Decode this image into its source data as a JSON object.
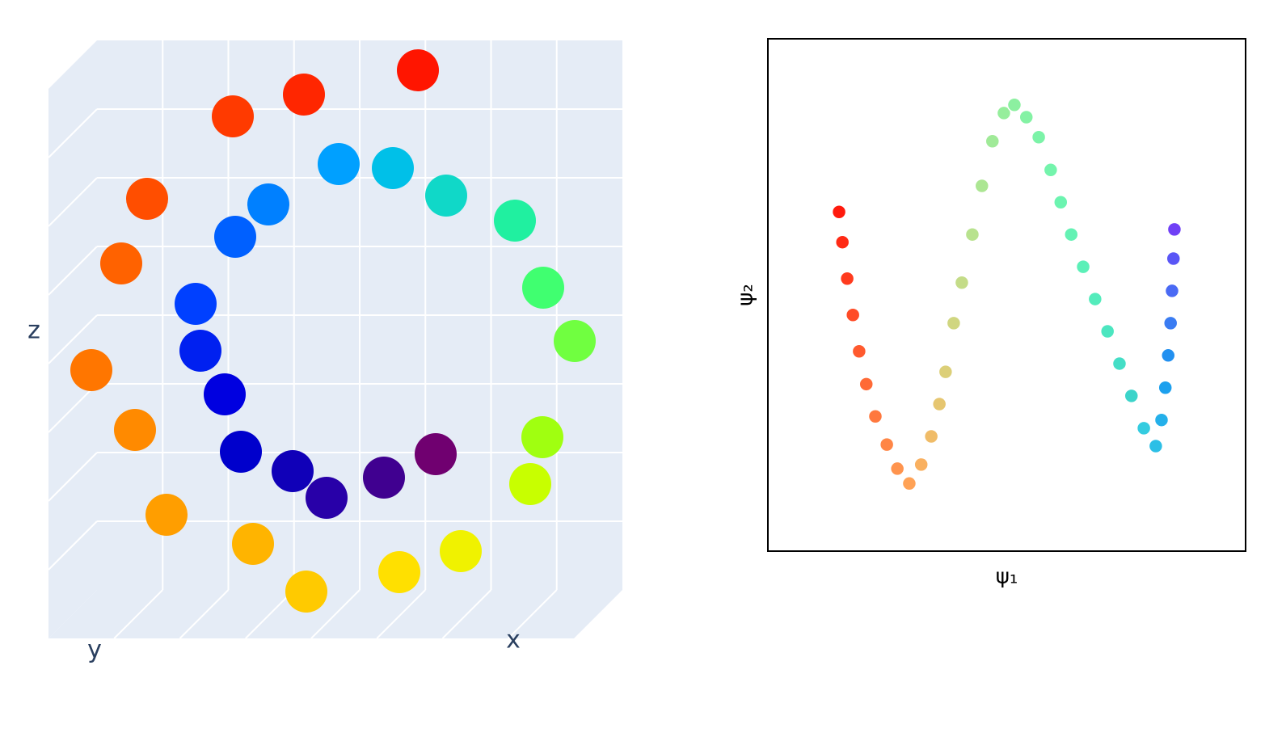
{
  "chart_data": [
    {
      "type": "scatter3d",
      "xlabel": "x",
      "ylabel": "y",
      "zlabel": "z",
      "xlim": [
        -35,
        30
      ],
      "ylim": [
        0,
        10
      ],
      "zlim": [
        -32,
        36
      ],
      "x": [
        5.9,
        -5.8,
        -16.4,
        -24.6,
        -29.6,
        -30.9,
        -28.5,
        -22.8,
        -14.5,
        -4.9,
        4.8,
        13.6,
        20.4,
        24.3,
        25.3,
        23.2,
        18.5,
        11.8,
        4.0,
        -3.9,
        -10.8,
        -16.1,
        -19.2,
        -19.8,
        -18.0,
        -14.2,
        -9.0,
        -3.0,
        2.9,
        8.1
      ],
      "y": [
        2,
        6,
        3,
        7,
        4,
        8,
        3,
        6,
        2,
        7,
        4,
        6,
        3,
        7,
        2,
        5,
        3,
        6,
        4,
        2,
        5,
        3,
        6,
        4,
        2,
        5,
        3,
        6,
        4,
        2
      ],
      "z": [
        33.5,
        32.9,
        28.4,
        20.6,
        10.8,
        0,
        -10.4,
        -19.1,
        -25.1,
        -28.0,
        -27.4,
        -23.6,
        -17.1,
        -8.9,
        0,
        8.4,
        15.5,
        20.4,
        22.6,
        21.9,
        18.7,
        13.5,
        7.0,
        0,
        -6.6,
        -11.9,
        -15.5,
        -17.0,
        -15.7,
        -14.0
      ],
      "colors": [
        "#ff1500",
        "#ff2600",
        "#ff3a00",
        "#ff4e00",
        "#ff6200",
        "#ff7600",
        "#ff8a00",
        "#ff9e00",
        "#ffb400",
        "#ffca00",
        "#ffe000",
        "#f0f200",
        "#c8ff00",
        "#a0ff10",
        "#70ff40",
        "#40ff70",
        "#20f0a0",
        "#10d8c8",
        "#00c0e8",
        "#00a0ff",
        "#0080ff",
        "#0060ff",
        "#0040ff",
        "#0020f0",
        "#0000e0",
        "#0000cc",
        "#1000b8",
        "#2800a8",
        "#400090",
        "#700070"
      ]
    },
    {
      "type": "scatter",
      "xlabel": "ψ₁",
      "ylabel": "ψ₂",
      "xlim": [
        0,
        1
      ],
      "ylim": [
        0,
        1
      ],
      "x": [
        0.149,
        0.156,
        0.166,
        0.178,
        0.191,
        0.206,
        0.225,
        0.249,
        0.271,
        0.296,
        0.321,
        0.342,
        0.359,
        0.372,
        0.389,
        0.406,
        0.428,
        0.448,
        0.47,
        0.494,
        0.516,
        0.541,
        0.567,
        0.592,
        0.613,
        0.635,
        0.66,
        0.685,
        0.711,
        0.736,
        0.761,
        0.787,
        0.812,
        0.824,
        0.832,
        0.838,
        0.843,
        0.846,
        0.849,
        0.851
      ],
      "values": [
        0.662,
        0.603,
        0.532,
        0.461,
        0.39,
        0.326,
        0.263,
        0.208,
        0.161,
        0.132,
        0.169,
        0.224,
        0.287,
        0.35,
        0.445,
        0.524,
        0.618,
        0.713,
        0.8,
        0.855,
        0.871,
        0.847,
        0.808,
        0.744,
        0.681,
        0.618,
        0.555,
        0.492,
        0.429,
        0.366,
        0.303,
        0.24,
        0.205,
        0.256,
        0.319,
        0.382,
        0.445,
        0.508,
        0.571,
        0.628
      ],
      "colors": [
        "#ff1a0d",
        "#ff2a15",
        "#ff3b1e",
        "#ff4b26",
        "#ff5a2e",
        "#ff6a36",
        "#ff783e",
        "#ff8646",
        "#ff944e",
        "#ffa256",
        "#f9b060",
        "#f0bc68",
        "#e6c670",
        "#dccf78",
        "#d0d680",
        "#c4dc88",
        "#b8e28e",
        "#ace693",
        "#a0ea98",
        "#96ee9c",
        "#8cf0a0",
        "#84f2a4",
        "#7cf3a8",
        "#74f4ac",
        "#6cf4b0",
        "#64f2b4",
        "#5cf0b8",
        "#54ecbc",
        "#4ce6c0",
        "#44dec6",
        "#3cd4ca",
        "#34cce0",
        "#2cbfe6",
        "#24b0ea",
        "#1ca0ee",
        "#2290f0",
        "#3a7cf2",
        "#4a6af4",
        "#5a56f6",
        "#7040f6"
      ]
    }
  ]
}
